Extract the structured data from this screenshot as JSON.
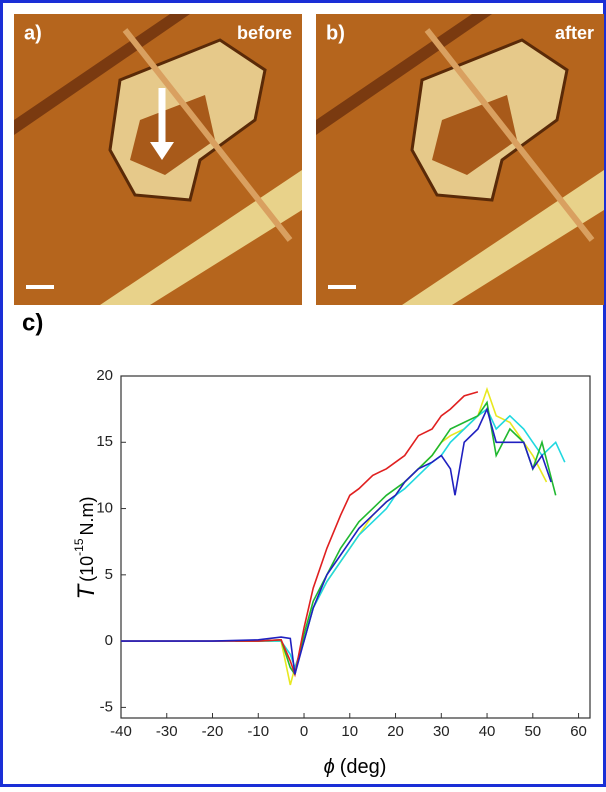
{
  "panels": [
    {
      "label": "a)",
      "caption": "before"
    },
    {
      "label": "b)",
      "caption": "after"
    }
  ],
  "chart_data": {
    "type": "line",
    "label": "c)",
    "xlabel": {
      "symbol": "ϕ",
      "text": "(deg)"
    },
    "ylabel": {
      "symbol": "T",
      "text": "(10",
      "exponent": "-15",
      "unit": "N.m)"
    },
    "xlim": [
      -40,
      62.5
    ],
    "ylim": [
      -5.8,
      20
    ],
    "xticks": [
      -40,
      -30,
      -20,
      -10,
      0,
      10,
      20,
      30,
      40,
      50,
      60
    ],
    "yticks": [
      -5,
      0,
      5,
      10,
      15,
      20
    ],
    "series": [
      {
        "color": "#e8e820",
        "x": [
          -15,
          -10,
          -5,
          -3,
          -2,
          0,
          2,
          5,
          8,
          10,
          12,
          15,
          18,
          20,
          22,
          25,
          28,
          30,
          32,
          35,
          38,
          40,
          42,
          45,
          48,
          50,
          53
        ],
        "values": [
          0,
          0,
          0,
          -3.3,
          -2,
          0,
          2.5,
          4.5,
          6,
          7,
          8,
          9.5,
          10.5,
          11,
          12,
          13,
          14,
          15,
          15.5,
          16,
          17,
          19,
          17,
          16.5,
          15,
          14,
          12
        ]
      },
      {
        "color": "#20d8e0",
        "x": [
          -40,
          -20,
          -10,
          -5,
          -3,
          -2,
          0,
          2,
          5,
          8,
          10,
          12,
          15,
          18,
          20,
          22,
          25,
          28,
          30,
          32,
          35,
          38,
          40,
          42,
          45,
          48,
          50,
          52,
          55,
          57
        ],
        "values": [
          0,
          0,
          0,
          0,
          -1,
          -2,
          0,
          2.5,
          4.5,
          6,
          7,
          8,
          9,
          10,
          11,
          11.5,
          12.5,
          13.5,
          14,
          15,
          16,
          17,
          17.5,
          16,
          17,
          16,
          15,
          14,
          15,
          13.5
        ]
      },
      {
        "color": "#20b830",
        "x": [
          -15,
          -10,
          -5,
          -3,
          -2,
          0,
          2,
          5,
          8,
          10,
          12,
          15,
          18,
          20,
          22,
          25,
          28,
          30,
          32,
          35,
          38,
          40,
          42,
          45,
          48,
          50,
          52,
          55
        ],
        "values": [
          0,
          0,
          0.1,
          -2,
          -2.5,
          0.5,
          3,
          5,
          7,
          8,
          9,
          10,
          11,
          11.5,
          12,
          13,
          14,
          15,
          16,
          16.5,
          17,
          18,
          14,
          16,
          15,
          13,
          15,
          11
        ]
      },
      {
        "color": "#e02020",
        "x": [
          -40,
          -30,
          -20,
          -10,
          -5,
          -3,
          -2,
          0,
          2,
          5,
          8,
          10,
          12,
          15,
          18,
          20,
          22,
          25,
          28,
          30,
          32,
          35,
          38
        ],
        "values": [
          0,
          0,
          0,
          0,
          0.1,
          -1.5,
          -2.5,
          1,
          4,
          7,
          9.5,
          11,
          11.5,
          12.5,
          13,
          13.5,
          14,
          15.5,
          16,
          17,
          17.5,
          18.5,
          18.8
        ]
      },
      {
        "color": "#2020c0",
        "x": [
          -40,
          -20,
          -10,
          -5,
          -3,
          -2,
          0,
          2,
          5,
          8,
          10,
          12,
          15,
          18,
          20,
          22,
          25,
          28,
          30,
          32,
          33,
          35,
          38,
          40,
          42,
          45,
          48,
          50,
          52,
          54
        ],
        "values": [
          0,
          0,
          0.1,
          0.3,
          0.2,
          -2.5,
          0,
          2.5,
          5,
          6.5,
          7.5,
          8.5,
          9.5,
          10.5,
          11,
          12,
          13,
          13.5,
          14,
          13,
          11,
          15,
          16,
          17.5,
          15,
          15,
          15,
          13,
          14,
          12
        ]
      }
    ]
  }
}
